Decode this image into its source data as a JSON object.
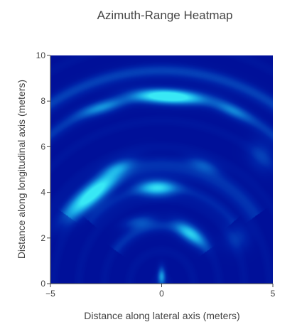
{
  "chart_data": {
    "type": "heatmap",
    "title": "Azimuth-Range Heatmap",
    "xlabel": "Distance along lateral axis (meters)",
    "ylabel": "Distance along longitudinal axis (meters)",
    "xlim": [
      -5,
      5
    ],
    "ylim": [
      0,
      10
    ],
    "x_ticks": [
      -5,
      0,
      5
    ],
    "x_tick_labels": [
      "−5",
      "0",
      "5"
    ],
    "y_ticks": [
      0,
      2,
      4,
      6,
      8,
      10
    ],
    "y_tick_labels": [
      "0",
      "2",
      "4",
      "6",
      "8",
      "10"
    ],
    "colorscale": [
      "#00008b",
      "#0022a8",
      "#0a5fc8",
      "#1aa9e6",
      "#38e8f5"
    ],
    "background_level": 0.12,
    "hotspots": [
      {
        "x": 0.3,
        "y": 8.2,
        "sx": 1.0,
        "sy": 0.22,
        "angle": -3,
        "intensity": 0.95
      },
      {
        "x": -3.1,
        "y": 3.9,
        "sx": 1.05,
        "sy": 0.3,
        "angle": 40,
        "intensity": 0.85
      },
      {
        "x": -0.2,
        "y": 4.2,
        "sx": 0.6,
        "sy": 0.25,
        "angle": 0,
        "intensity": 0.7
      },
      {
        "x": 1.3,
        "y": 2.2,
        "sx": 0.55,
        "sy": 0.25,
        "angle": -35,
        "intensity": 0.6
      },
      {
        "x": -2.7,
        "y": 7.7,
        "sx": 0.7,
        "sy": 0.2,
        "angle": 15,
        "intensity": 0.35
      },
      {
        "x": 3.2,
        "y": 7.6,
        "sx": 0.6,
        "sy": 0.2,
        "angle": -25,
        "intensity": 0.3
      },
      {
        "x": 0.0,
        "y": 0.3,
        "sx": 0.12,
        "sy": 0.3,
        "angle": 0,
        "intensity": 0.55
      },
      {
        "x": -1.0,
        "y": 2.7,
        "sx": 0.5,
        "sy": 0.2,
        "angle": 10,
        "intensity": 0.3
      },
      {
        "x": 1.9,
        "y": 5.2,
        "sx": 0.5,
        "sy": 0.2,
        "angle": -20,
        "intensity": 0.28
      },
      {
        "x": -2.0,
        "y": 5.1,
        "sx": 0.5,
        "sy": 0.2,
        "angle": 20,
        "intensity": 0.3
      },
      {
        "x": 3.4,
        "y": 2.0,
        "sx": 0.4,
        "sy": 0.4,
        "angle": -50,
        "intensity": 0.2
      },
      {
        "x": 4.5,
        "y": 5.6,
        "sx": 0.5,
        "sy": 0.4,
        "angle": -60,
        "intensity": 0.22
      }
    ],
    "arcs": [
      {
        "radius": 9.3,
        "width": 0.22,
        "from_deg": 55,
        "to_deg": 125,
        "intensity": 0.22
      },
      {
        "radius": 8.2,
        "width": 0.2,
        "from_deg": 40,
        "to_deg": 140,
        "intensity": 0.18
      },
      {
        "radius": 5.2,
        "width": 0.25,
        "from_deg": 35,
        "to_deg": 145,
        "intensity": 0.2
      },
      {
        "radius": 4.2,
        "width": 0.2,
        "from_deg": 40,
        "to_deg": 140,
        "intensity": 0.15
      },
      {
        "radius": 2.5,
        "width": 0.2,
        "from_deg": 35,
        "to_deg": 145,
        "intensity": 0.15
      }
    ]
  }
}
